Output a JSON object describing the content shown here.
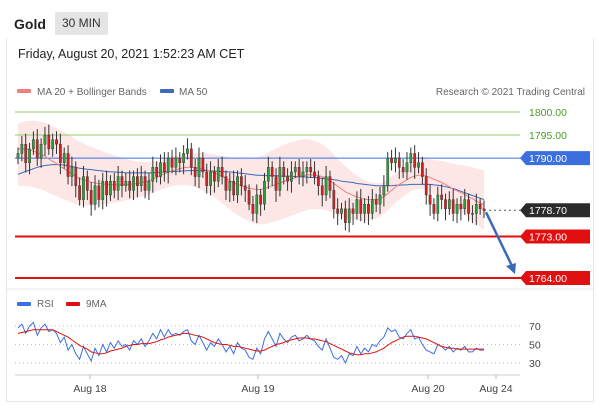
{
  "header": {
    "title": "Gold",
    "timeframe": "30 MIN",
    "datetime": "Friday, August 20, 2021 1:52:23 AM CET"
  },
  "legend": {
    "ma20_label": "MA 20 + Bollinger Bands",
    "ma50_label": "MA 50",
    "credit": "Research © 2021 Trading Central",
    "rsi_label": "RSI",
    "nine_ma_label": "9MA"
  },
  "colors": {
    "ma20": "#f08080",
    "ma50": "#3a6ab8",
    "band_fill": "#fde3e3",
    "candle_up": "#2e9e3a",
    "candle_down": "#d42020",
    "resistance_green": "#8fcc6a",
    "pivot_blue": "#3b6fe0",
    "support_red": "#e01010",
    "arrow": "#3a6ab8",
    "rsi_line": "#3b6fe0",
    "rsi_ma": "#e01010"
  },
  "chart_data": [
    {
      "type": "candlestick",
      "title": "Gold",
      "timeframe": "30 MIN",
      "ylim": [
        1755,
        1808
      ],
      "x_tick_labels": [
        "Aug 18",
        "Aug 19",
        "Aug 20",
        "Aug 24"
      ],
      "levels": [
        {
          "value": 1800.0,
          "label": "1800.00",
          "kind": "resistance"
        },
        {
          "value": 1795.0,
          "label": "1795.00",
          "kind": "resistance"
        },
        {
          "value": 1790.0,
          "label": "1790.00",
          "kind": "pivot"
        },
        {
          "value": 1778.7,
          "label": "1778.70",
          "kind": "last"
        },
        {
          "value": 1773.0,
          "label": "1773.00",
          "kind": "support"
        },
        {
          "value": 1764.0,
          "label": "1764.00",
          "kind": "support"
        }
      ],
      "close": [
        1791,
        1793,
        1789,
        1792,
        1794,
        1790,
        1793,
        1795,
        1792,
        1794,
        1793,
        1789,
        1791,
        1786,
        1788,
        1784,
        1781,
        1786,
        1783,
        1780,
        1784,
        1781,
        1785,
        1782,
        1785,
        1783,
        1786,
        1784,
        1785,
        1783,
        1786,
        1784,
        1786,
        1783,
        1785,
        1788,
        1786,
        1789,
        1787,
        1790,
        1788,
        1790,
        1789,
        1791,
        1792,
        1788,
        1786,
        1790,
        1787,
        1784,
        1787,
        1785,
        1788,
        1786,
        1783,
        1785,
        1782,
        1786,
        1784,
        1783,
        1780,
        1778,
        1782,
        1780,
        1785,
        1788,
        1786,
        1783,
        1788,
        1786,
        1785,
        1787,
        1788,
        1786,
        1787,
        1788,
        1787,
        1786,
        1784,
        1782,
        1786,
        1783,
        1779,
        1778,
        1779,
        1776,
        1779,
        1778,
        1781,
        1778,
        1780,
        1778,
        1781,
        1780,
        1782,
        1784,
        1790,
        1789,
        1790,
        1788,
        1787,
        1789,
        1791,
        1788,
        1789,
        1786,
        1782,
        1780,
        1778,
        1782,
        1781,
        1779,
        1781,
        1778,
        1780,
        1779,
        1781,
        1778,
        1778,
        1780,
        1779,
        1778.7
      ],
      "ma20": [
        1792.0,
        1792.0,
        1791.9,
        1791.8,
        1791.5,
        1791.2,
        1790.8,
        1790.4,
        1789.8,
        1789.3,
        1788.8,
        1788.2,
        1787.7,
        1787.1,
        1786.6,
        1786.0,
        1785.6,
        1785.3,
        1785.0,
        1784.8,
        1784.6,
        1784.5,
        1784.4,
        1784.3,
        1784.3,
        1784.2,
        1784.2,
        1784.2,
        1784.3,
        1784.3,
        1784.4,
        1784.5,
        1784.7,
        1784.9,
        1785.1,
        1785.5,
        1785.8,
        1786.2,
        1786.6,
        1786.9,
        1787.2,
        1787.5,
        1787.7,
        1787.9,
        1788.0,
        1788.0,
        1787.9,
        1787.8,
        1787.6,
        1787.4,
        1787.1,
        1786.8,
        1786.4,
        1786.0,
        1785.6,
        1785.1,
        1784.6,
        1784.3,
        1784.0,
        1783.7,
        1783.5,
        1783.3,
        1783.2,
        1783.2,
        1783.4,
        1783.7,
        1784.0,
        1784.3,
        1784.6,
        1784.9,
        1785.2,
        1785.5,
        1785.7,
        1786.0,
        1786.2,
        1786.4,
        1786.4,
        1786.3,
        1786.2,
        1786.0,
        1785.6,
        1785.1,
        1784.5,
        1783.9,
        1783.3,
        1782.7,
        1782.3,
        1781.9,
        1781.6,
        1781.3,
        1781.1,
        1781.0,
        1781.0,
        1781.0,
        1781.2,
        1781.6,
        1782.3,
        1783.0,
        1783.7,
        1784.3,
        1784.8,
        1785.3,
        1785.8,
        1786.1,
        1786.3,
        1786.3,
        1786.1,
        1785.8,
        1785.4,
        1785.1,
        1784.7,
        1784.3,
        1783.8,
        1783.3,
        1782.9,
        1782.5,
        1782.1,
        1781.6,
        1781.2,
        1780.7,
        1780.3,
        1779.9
      ],
      "ma50": [
        1786.5,
        1786.8,
        1787.1,
        1787.4,
        1787.7,
        1788.0,
        1788.2,
        1788.4,
        1788.5,
        1788.6,
        1788.6,
        1788.6,
        1788.5,
        1788.3,
        1788.2,
        1788.0,
        1787.8,
        1787.7,
        1787.6,
        1787.5,
        1787.4,
        1787.3,
        1787.2,
        1787.1,
        1787.0,
        1787.0,
        1786.9,
        1786.9,
        1786.8,
        1786.8,
        1786.8,
        1786.8,
        1786.8,
        1786.8,
        1786.8,
        1786.8,
        1786.9,
        1786.9,
        1787.0,
        1787.0,
        1787.1,
        1787.1,
        1787.2,
        1787.2,
        1787.3,
        1787.3,
        1787.3,
        1787.3,
        1787.3,
        1787.3,
        1787.2,
        1787.2,
        1787.1,
        1787.1,
        1787.0,
        1787.0,
        1786.9,
        1786.8,
        1786.7,
        1786.6,
        1786.5,
        1786.4,
        1786.3,
        1786.3,
        1786.2,
        1786.2,
        1786.2,
        1786.2,
        1786.1,
        1786.1,
        1786.1,
        1786.1,
        1786.0,
        1786.0,
        1785.9,
        1785.9,
        1785.8,
        1785.8,
        1785.7,
        1785.6,
        1785.5,
        1785.4,
        1785.3,
        1785.2,
        1785.0,
        1784.9,
        1784.8,
        1784.7,
        1784.5,
        1784.4,
        1784.3,
        1784.2,
        1784.1,
        1784.0,
        1784.0,
        1784.0,
        1784.0,
        1784.0,
        1784.1,
        1784.1,
        1784.2,
        1784.2,
        1784.3,
        1784.3,
        1784.3,
        1784.3,
        1784.3,
        1784.3,
        1784.2,
        1784.1,
        1784.0,
        1783.8,
        1783.6,
        1783.4,
        1783.1,
        1782.8,
        1782.5,
        1782.2,
        1781.9,
        1781.6,
        1781.3,
        1781.0
      ],
      "forecast_arrow": {
        "from": 1778.7,
        "to": 1764.0
      }
    },
    {
      "type": "line",
      "name": "RSI",
      "ylim": [
        25,
        78
      ],
      "y_tick_labels": [
        "70",
        "50",
        "30"
      ],
      "levels": [
        70,
        50,
        30
      ],
      "rsi": [
        68,
        72,
        62,
        70,
        74,
        60,
        68,
        72,
        64,
        66,
        62,
        52,
        58,
        44,
        50,
        40,
        34,
        48,
        40,
        32,
        46,
        38,
        50,
        42,
        52,
        46,
        54,
        48,
        50,
        44,
        54,
        50,
        56,
        48,
        54,
        62,
        56,
        66,
        58,
        66,
        60,
        62,
        60,
        64,
        66,
        54,
        50,
        60,
        52,
        44,
        52,
        48,
        56,
        50,
        42,
        48,
        40,
        52,
        46,
        44,
        36,
        34,
        46,
        40,
        56,
        64,
        56,
        48,
        62,
        56,
        52,
        58,
        60,
        54,
        56,
        60,
        56,
        54,
        48,
        44,
        56,
        46,
        36,
        34,
        38,
        30,
        40,
        38,
        48,
        40,
        46,
        42,
        50,
        48,
        54,
        58,
        68,
        64,
        66,
        58,
        56,
        62,
        66,
        56,
        58,
        50,
        44,
        42,
        40,
        50,
        48,
        44,
        48,
        42,
        46,
        44,
        48,
        42,
        42,
        46,
        44,
        44
      ],
      "rsi_9ma": [
        62,
        63,
        64,
        65,
        66,
        66,
        66,
        66,
        66,
        66,
        64,
        62,
        60,
        58,
        55,
        52,
        49,
        47,
        45,
        42,
        41,
        40,
        40,
        41,
        43,
        44,
        45,
        46,
        48,
        49,
        50,
        50,
        51,
        51,
        51,
        52,
        53,
        55,
        56,
        58,
        59,
        60,
        61,
        62,
        62,
        61,
        60,
        59,
        58,
        56,
        54,
        52,
        51,
        50,
        50,
        49,
        48,
        48,
        47,
        46,
        45,
        44,
        43,
        43,
        44,
        46,
        48,
        50,
        51,
        52,
        54,
        55,
        56,
        57,
        57,
        57,
        56,
        56,
        55,
        54,
        53,
        51,
        49,
        47,
        45,
        43,
        41,
        40,
        39,
        39,
        40,
        40,
        41,
        42,
        44,
        46,
        49,
        52,
        54,
        56,
        58,
        59,
        59,
        59,
        58,
        57,
        56,
        54,
        52,
        50,
        48,
        47,
        46,
        46,
        45,
        45,
        45,
        45,
        45,
        45,
        45,
        45
      ]
    }
  ]
}
